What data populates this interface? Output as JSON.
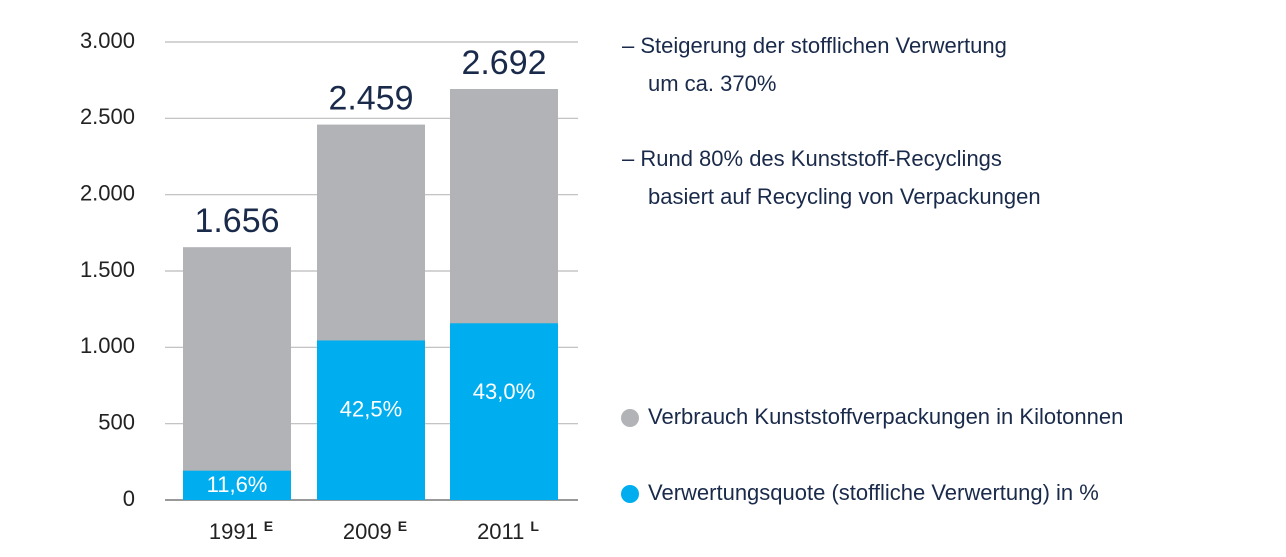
{
  "chart_data": {
    "type": "bar",
    "categories": [
      "1991",
      "2009",
      "2011"
    ],
    "category_notes": [
      "E",
      "E",
      "L"
    ],
    "series": [
      {
        "name": "Verbrauch Kunststoffverpackungen in Kilotonnen",
        "color": "#b1b3b6",
        "values": [
          1656,
          2459,
          2692
        ],
        "value_labels": [
          "1.656",
          "2.459",
          "2.692"
        ]
      },
      {
        "name": "Verwertungsquote (stoffliche Verwertung) in %",
        "color": "#00aeef",
        "values": [
          11.6,
          42.5,
          43.0
        ],
        "value_labels": [
          "11,6%",
          "42,5%",
          "43,0%"
        ]
      }
    ],
    "ylim": [
      0,
      3000
    ],
    "yticks": [
      0,
      500,
      {
        "value": 1000,
        "label": "1.000"
      },
      {
        "value": 1500,
        "label": "1.500"
      },
      {
        "value": 2000,
        "label": "2.000"
      },
      {
        "value": 2500,
        "label": "2.500"
      },
      {
        "value": 3000,
        "label": "3.000"
      }
    ],
    "grid": true,
    "annotations": [
      [
        "– Steigerung der stofflichen Verwertung",
        "um ca. 370%"
      ],
      [
        "– Rund 80% des Kunststoff-Recyclings",
        "basiert auf Recycling von Verpackungen"
      ]
    ]
  }
}
